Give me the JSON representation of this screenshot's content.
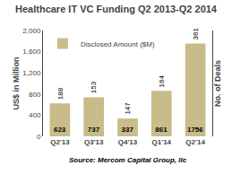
{
  "chart_data": {
    "type": "bar",
    "title": "Healthcare IT VC Funding Q2 2013-Q2 2014",
    "categories": [
      "Q2'13",
      "Q3'13",
      "Q4'13",
      "Q1'14",
      "Q2'14"
    ],
    "series": [
      {
        "name": "Disclosed Amount ($M)",
        "color": "#c8bc8a",
        "values": [
          623,
          737,
          337,
          861,
          1756
        ],
        "deal_counts": [
          188,
          153,
          147,
          164,
          361
        ]
      }
    ],
    "ylabel": "US$ in Million",
    "y2label": "No. of Deals",
    "ylim": [
      0,
      2000
    ],
    "yticks": [
      0,
      400,
      800,
      {
        "value": 1200,
        "label": "1,200"
      },
      {
        "value": 1600,
        "label": "1,600"
      },
      {
        "value": 2000,
        "label": "2,000"
      }
    ],
    "source": "Source: Mercom Capital Group, llc",
    "data_labels": true,
    "legend": "upper left",
    "grid": false
  }
}
